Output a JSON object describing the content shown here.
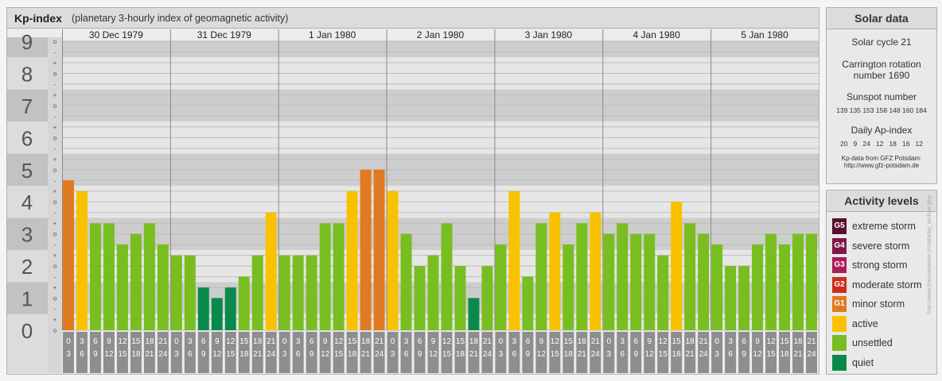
{
  "header": {
    "title": "Kp-index",
    "subtitle": "(planetary 3-hourly index of geomagnetic activity)"
  },
  "solar": {
    "heading": "Solar data",
    "cycle": "Solar cycle 21",
    "carrington_line1": "Carrington rotation",
    "carrington_line2": "number 1690",
    "sunspot_heading": "Sunspot number",
    "sunspot_values": "139 135 153 158 148 160 184",
    "ap_heading": "Daily Ap-index",
    "ap_values": "20   9   24   12   18   16   12",
    "source_line1": "Kp-data from GFZ Potsdam:",
    "source_line2": "http://www.gfz-potsdam.de"
  },
  "activity": {
    "heading": "Activity levels",
    "levels": [
      {
        "code": "G5",
        "label": "extreme storm",
        "color": "#5c0f2c"
      },
      {
        "code": "G4",
        "label": "severe storm",
        "color": "#7d1847"
      },
      {
        "code": "G3",
        "label": "strong storm",
        "color": "#a91c5a"
      },
      {
        "code": "G2",
        "label": "moderate storm",
        "color": "#c92e1e"
      },
      {
        "code": "G1",
        "label": "minor storm",
        "color": "#e07a20"
      },
      {
        "code": "",
        "label": "active",
        "color": "#f8c200"
      },
      {
        "code": "",
        "label": "unsettled",
        "color": "#78be20"
      },
      {
        "code": "",
        "label": "quiet",
        "color": "#0a8a4a"
      }
    ]
  },
  "watermark": "http://www.theusaviewer.ch/data/kp_archive.php",
  "chart_data": {
    "type": "bar",
    "title": "Kp-index",
    "ylim": [
      0,
      9
    ],
    "y_ticks": [
      "0",
      "1",
      "2",
      "3",
      "4",
      "5",
      "6",
      "7",
      "8",
      "9"
    ],
    "minor_labels": [
      "o",
      "+",
      "-"
    ],
    "days": [
      "30 Dec 1979",
      "31 Dec 1979",
      "1 Jan 1980",
      "2 Jan 1980",
      "3 Jan 1980",
      "4 Jan 1980",
      "5 Jan 1980"
    ],
    "hour_top": [
      "0",
      "3",
      "6",
      "9",
      "12",
      "15",
      "18",
      "21"
    ],
    "hour_bottom": [
      "3",
      "6",
      "9",
      "12",
      "15",
      "18",
      "21",
      "24"
    ],
    "values": [
      4.67,
      4.33,
      3.33,
      3.33,
      2.67,
      3.0,
      3.33,
      2.67,
      2.33,
      2.33,
      1.33,
      1.0,
      1.33,
      1.67,
      2.33,
      3.67,
      2.33,
      2.33,
      2.33,
      3.33,
      3.33,
      4.33,
      5.0,
      5.0,
      4.33,
      3.0,
      2.0,
      2.33,
      3.33,
      2.0,
      1.0,
      2.0,
      2.67,
      4.33,
      1.67,
      3.33,
      3.67,
      2.67,
      3.33,
      3.67,
      3.0,
      3.33,
      3.0,
      3.0,
      2.33,
      4.0,
      3.33,
      3.0,
      2.67,
      2.0,
      2.0,
      2.67,
      3.0,
      2.67,
      3.0,
      3.0
    ],
    "colors": {
      "quiet": "#0a8a4a",
      "unsettled": "#78be20",
      "active": "#f8c200",
      "minor_storm": "#e07a20",
      "moderate_storm": "#c92e1e"
    }
  }
}
